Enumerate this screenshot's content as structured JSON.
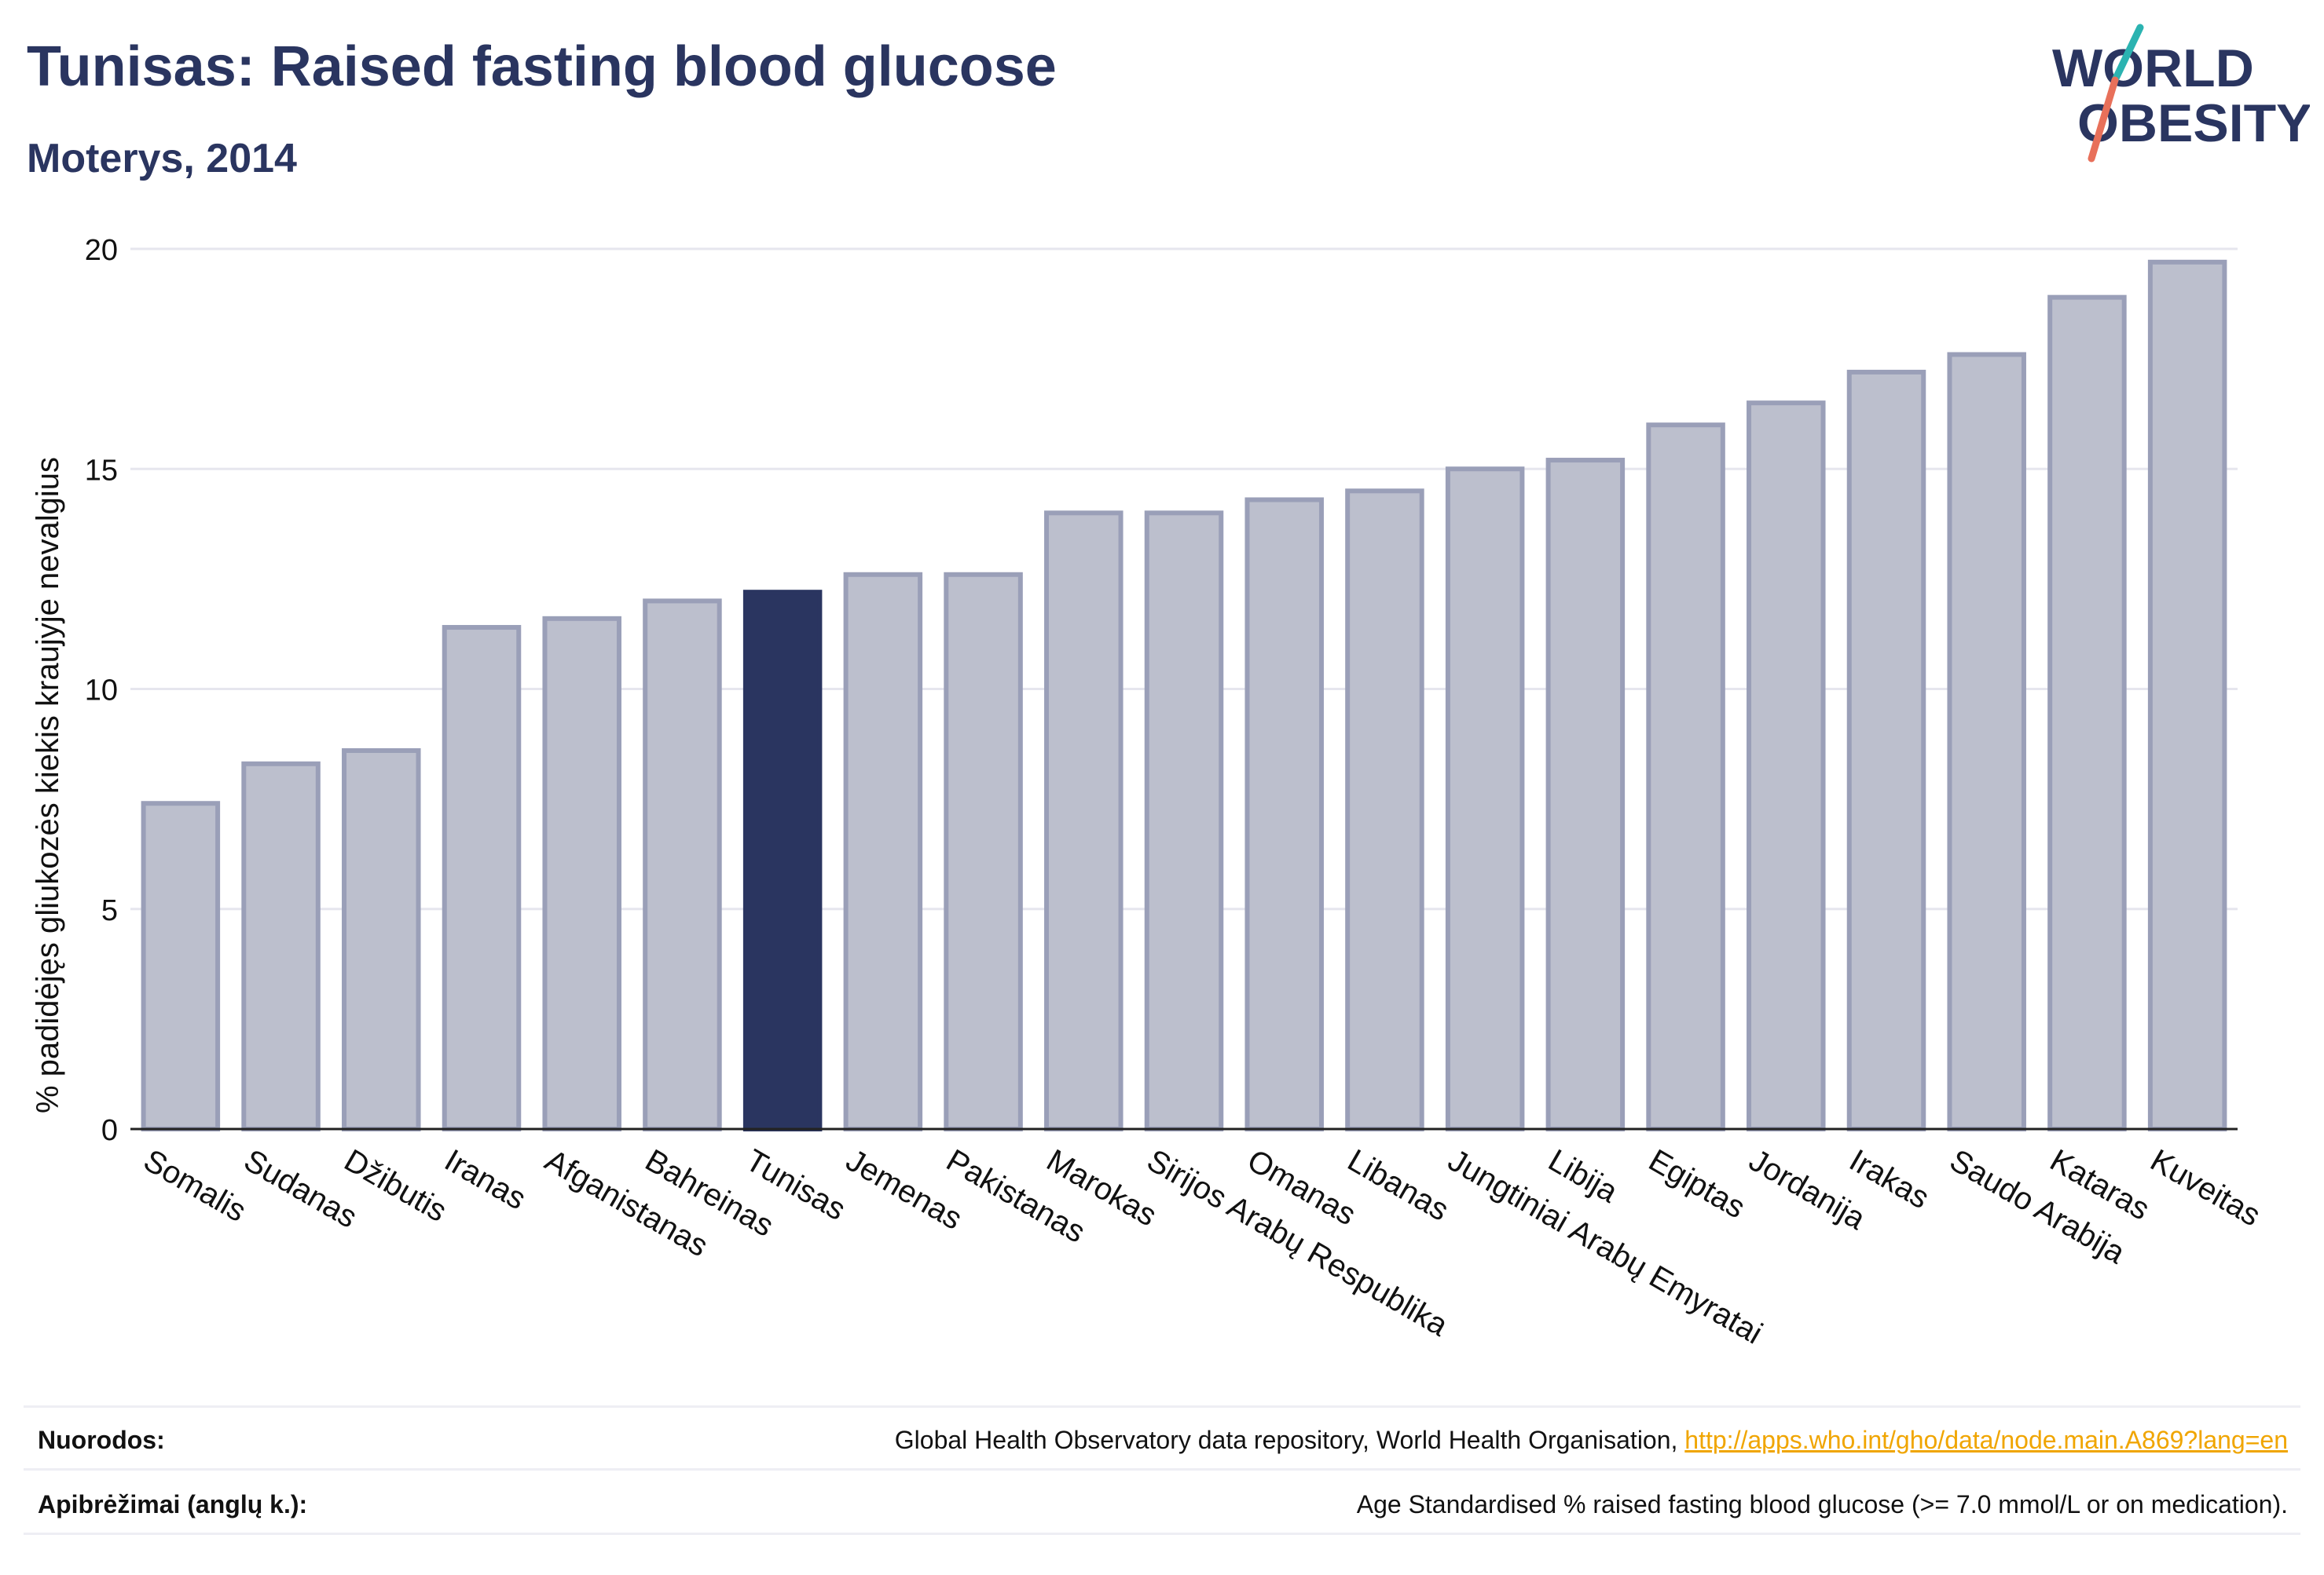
{
  "header": {
    "title": "Tunisas: Raised fasting blood glucose",
    "subtitle": "Moterys, 2014"
  },
  "logo": {
    "line1": "WORLD",
    "line2": "OBESITY",
    "text_color": "#2a3560",
    "slash_color_top": "#2bb3b1",
    "slash_color_bottom": "#e8705a"
  },
  "colors": {
    "bar": "#bcbfcd",
    "bar_border": "#9a9fb8",
    "highlight": "#2a3560",
    "grid": "#e6e6ee",
    "axis": "#222222"
  },
  "chart_data": {
    "type": "bar",
    "ylabel": "% padidėjęs gliukozės kiekis kraujyje nevalgius",
    "ylim": [
      0,
      20
    ],
    "yticks": [
      0,
      5,
      10,
      15,
      20
    ],
    "grid": true,
    "highlight": "Tunisas",
    "categories": [
      "Somalis",
      "Sudanas",
      "Džibutis",
      "Iranas",
      "Afganistanas",
      "Bahreinas",
      "Tunisas",
      "Jemenas",
      "Pakistanas",
      "Marokas",
      "Sirijos Arabų Respublika",
      "Omanas",
      "Libanas",
      "Jungtiniai Arabų Emyratai",
      "Libija",
      "Egiptas",
      "Jordanija",
      "Irakas",
      "Saudo Arabija",
      "Kataras",
      "Kuveitas"
    ],
    "values": [
      7.4,
      8.3,
      8.6,
      11.4,
      11.6,
      12.0,
      12.2,
      12.6,
      12.6,
      14.0,
      14.0,
      14.3,
      14.5,
      15.0,
      15.2,
      16.0,
      16.5,
      17.2,
      17.6,
      18.9,
      19.7
    ]
  },
  "footer": {
    "sources_label": "Nuorodos:",
    "sources_text": "Global Health Observatory data repository, World Health Organisation, ",
    "sources_link": "http://apps.who.int/gho/data/node.main.A869?lang=en",
    "definitions_label": "Apibrėžimai (anglų k.):",
    "definitions_text": "Age Standardised % raised fasting blood glucose (>= 7.0 mmol/L or on medication)."
  }
}
